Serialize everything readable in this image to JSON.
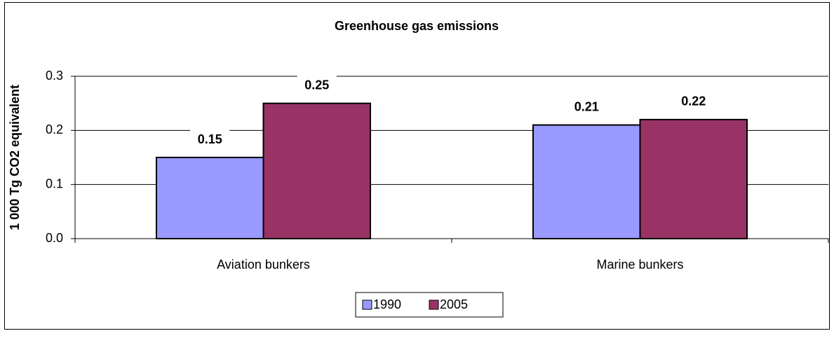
{
  "chart_data": {
    "type": "bar",
    "title": "Greenhouse gas emissions",
    "y_label": "1 000 Tg CO2 equivalent",
    "categories": [
      "Aviation bunkers",
      "Marine bunkers"
    ],
    "series": [
      {
        "name": "1990",
        "color": "#9999ff",
        "values": [
          0.15,
          0.21
        ],
        "value_labels": [
          "0.15",
          "0.21"
        ]
      },
      {
        "name": "2005",
        "color": "#993366",
        "values": [
          0.25,
          0.22
        ],
        "value_labels": [
          "0.25",
          "0.22"
        ]
      }
    ],
    "ylim": [
      0,
      0.3
    ],
    "yticks": [
      {
        "value": 0,
        "label": "0.0"
      },
      0.1,
      0.2,
      0.3
    ],
    "grid": true,
    "legend": "bottom"
  }
}
